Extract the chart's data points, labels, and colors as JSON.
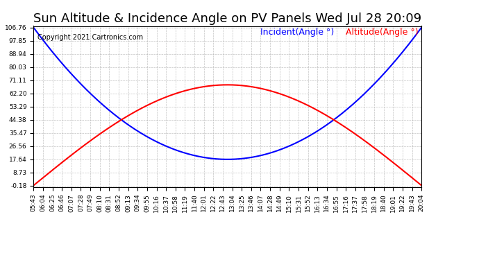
{
  "title": "Sun Altitude & Incidence Angle on PV Panels Wed Jul 28 20:09",
  "copyright": "Copyright 2021 Cartronics.com",
  "legend_incident": "Incident(Angle °)",
  "legend_altitude": "Altitude(Angle °)",
  "incident_color": "#0000ff",
  "altitude_color": "#ff0000",
  "background_color": "#ffffff",
  "grid_color": "#aaaaaa",
  "ylim_min": -0.18,
  "ylim_max": 106.76,
  "yticks": [
    106.76,
    97.85,
    88.94,
    80.03,
    71.11,
    62.2,
    53.29,
    44.38,
    35.47,
    26.56,
    17.64,
    8.73,
    -0.18
  ],
  "x_labels": [
    "05:43",
    "06:04",
    "06:25",
    "06:46",
    "07:07",
    "07:28",
    "07:49",
    "08:10",
    "08:31",
    "08:52",
    "09:13",
    "09:34",
    "09:55",
    "10:16",
    "10:37",
    "10:58",
    "11:19",
    "11:40",
    "12:01",
    "12:22",
    "12:43",
    "13:04",
    "13:25",
    "13:46",
    "14:07",
    "14:28",
    "14:49",
    "15:10",
    "15:31",
    "15:52",
    "16:13",
    "16:34",
    "16:55",
    "17:16",
    "17:37",
    "17:58",
    "18:19",
    "18:40",
    "19:01",
    "19:22",
    "19:43",
    "20:04"
  ],
  "title_fontsize": 13,
  "copyright_fontsize": 7,
  "legend_fontsize": 9,
  "tick_fontsize": 6.5,
  "line_width": 1.5
}
